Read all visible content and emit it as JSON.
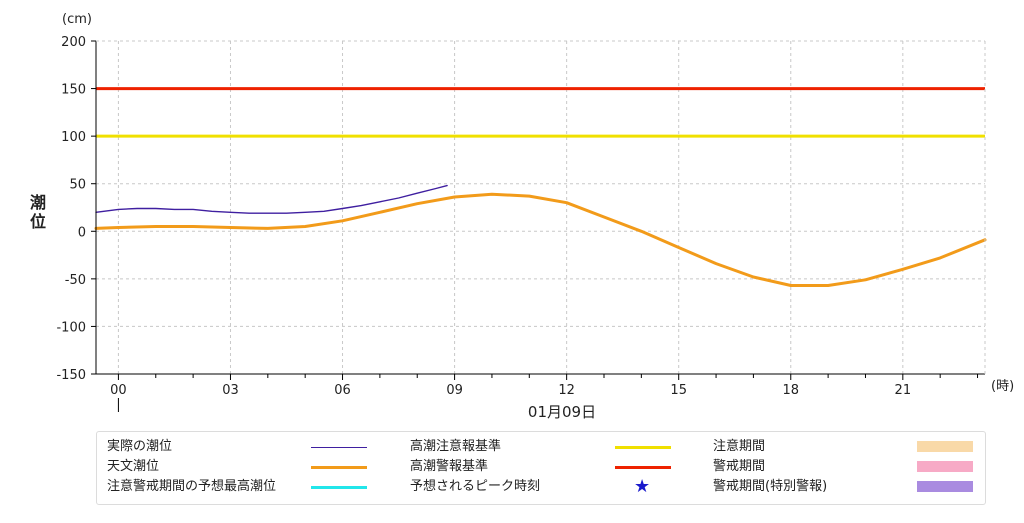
{
  "chart_data": {
    "type": "line",
    "y_unit": "(cm)",
    "x_unit": "(時)",
    "ylabel": "潮位",
    "date_label": "01月09日",
    "ylim": [
      -150,
      200
    ],
    "yticks": [
      200,
      150,
      100,
      50,
      0,
      -50,
      -100,
      -150
    ],
    "xlim": [
      -0.6,
      23.2
    ],
    "xticks": [
      {
        "h": 0,
        "label": "00"
      },
      {
        "h": 3,
        "label": "03"
      },
      {
        "h": 6,
        "label": "06"
      },
      {
        "h": 9,
        "label": "09"
      },
      {
        "h": 12,
        "label": "12"
      },
      {
        "h": 15,
        "label": "15"
      },
      {
        "h": 18,
        "label": "18"
      },
      {
        "h": 21,
        "label": "21"
      }
    ],
    "grid": true,
    "thresholds": [
      {
        "name": "高潮注意報基準",
        "value": 100,
        "color": "#f0e000"
      },
      {
        "name": "高潮警報基準",
        "value": 150,
        "color": "#ee2200"
      }
    ],
    "series": [
      {
        "name": "実際の潮位",
        "color": "#3f1fa0",
        "x": [
          -0.6,
          0,
          0.5,
          1,
          1.5,
          2,
          2.5,
          3,
          3.5,
          4,
          4.5,
          5,
          5.5,
          6,
          6.5,
          7,
          7.5,
          8,
          8.5,
          8.8
        ],
        "y": [
          20,
          23,
          24,
          24,
          23,
          23,
          21,
          20,
          19,
          19,
          19,
          20,
          21,
          24,
          27,
          31,
          35,
          40,
          45,
          48
        ]
      },
      {
        "name": "天文潮位",
        "color": "#f29b1a",
        "x": [
          -0.6,
          0,
          1,
          2,
          3,
          4,
          5,
          6,
          7,
          8,
          9,
          10,
          11,
          12,
          13,
          14,
          15,
          16,
          17,
          18,
          19,
          20,
          21,
          22,
          23.2
        ],
        "y": [
          3,
          4,
          5,
          5,
          4,
          3,
          5,
          11,
          20,
          29,
          36,
          39,
          37,
          30,
          15,
          0,
          -17,
          -34,
          -48,
          -57,
          -57,
          -51,
          -40,
          -28,
          -9
        ]
      }
    ]
  },
  "legend": {
    "actual": "実際の潮位",
    "astronomical": "天文潮位",
    "predicted_max": "注意警戒期間の予想最高潮位",
    "caution_std": "高潮注意報基準",
    "warning_std": "高潮警報基準",
    "peak_time": "予想されるピーク時刻",
    "caution_period": "注意期間",
    "warning_period": "警戒期間",
    "special_period": "警戒期間(特別警報)",
    "colors": {
      "actual": "#3f1fa0",
      "astronomical": "#f29b1a",
      "predicted_max": "#22e6ea",
      "caution_std": "#f0e000",
      "warning_std": "#ee2200",
      "peak_time": "#1a1acc",
      "caution_period": "#f9d9a8",
      "warning_period": "#f7aac6",
      "special_period": "#a98be0"
    }
  }
}
